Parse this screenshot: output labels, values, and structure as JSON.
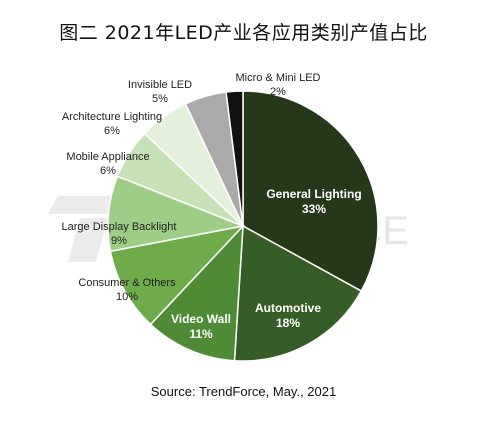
{
  "chart_data": {
    "type": "pie",
    "title": "图二  2021年LED产业各应用类别产值占比",
    "source": "Source: TrendForce, May., 2021",
    "watermark": "TRENDFORCE",
    "start_angle_deg": 0,
    "direction": "clockwise",
    "slices": [
      {
        "name": "General Lighting",
        "value": 33,
        "label": "33%",
        "color": "#26381a",
        "label_color": "#ffffff"
      },
      {
        "name": "Automotive",
        "value": 18,
        "label": "18%",
        "color": "#365d27",
        "label_color": "#ffffff"
      },
      {
        "name": "Video Wall",
        "value": 11,
        "label": "11%",
        "color": "#4f8a35",
        "label_color": "#ffffff"
      },
      {
        "name": "Consumer & Others",
        "value": 10,
        "label": "10%",
        "color": "#6fab4b",
        "label_color": "#222222"
      },
      {
        "name": "Large Display Backlight",
        "value": 9,
        "label": "9%",
        "color": "#9fcd86",
        "label_color": "#222222"
      },
      {
        "name": "Mobile Appliance",
        "value": 6,
        "label": "6%",
        "color": "#c6e0b7",
        "label_color": "#222222"
      },
      {
        "name": "Architecture Lighting",
        "value": 6,
        "label": "6%",
        "color": "#e4f0dc",
        "label_color": "#222222"
      },
      {
        "name": "Invisible LED",
        "value": 5,
        "label": "5%",
        "color": "#aaaaaa",
        "label_color": "#222222"
      },
      {
        "name": "Micro & Mini LED",
        "value": 2,
        "label": "2%",
        "color": "#111111",
        "label_color": "#222222"
      }
    ]
  }
}
